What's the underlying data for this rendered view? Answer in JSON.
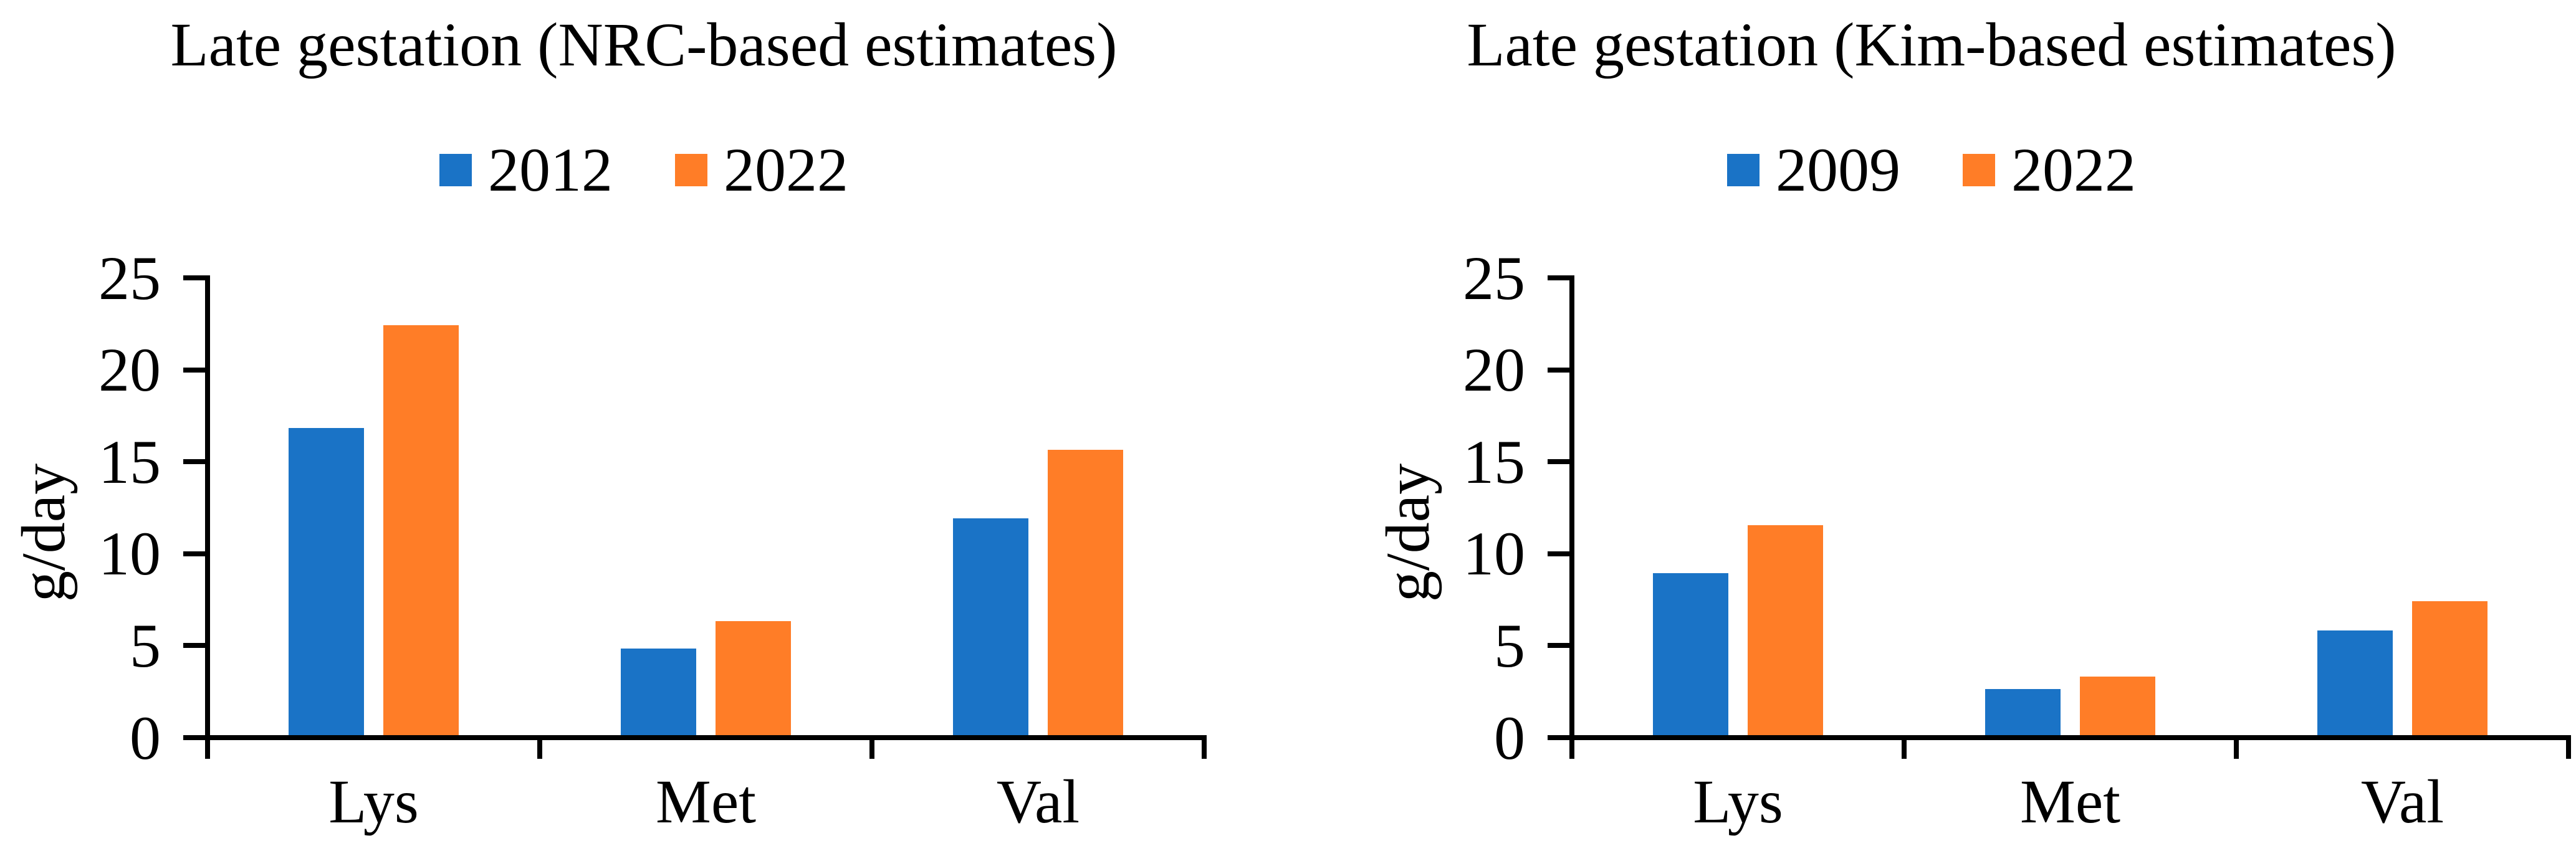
{
  "background": "#FFFFFF",
  "axis_color": "#000000",
  "text_color": "#000000",
  "chart_data": [
    {
      "type": "bar",
      "title": "Late gestation (NRC-based estimates)",
      "ylabel": "g/day",
      "xlabel": "",
      "categories": [
        "Lys",
        "Met",
        "Val"
      ],
      "series": [
        {
          "name": "2012",
          "color": "#1A73C6",
          "values": [
            16.7,
            4.7,
            11.8
          ]
        },
        {
          "name": "2022",
          "color": "#FF7D27",
          "values": [
            22.3,
            6.2,
            15.5
          ]
        }
      ],
      "ylim": [
        0,
        25
      ],
      "yticks": [
        0,
        5,
        10,
        15,
        20,
        25
      ],
      "legend_position": "top-center",
      "grid": false
    },
    {
      "type": "bar",
      "title": "Late gestation (Kim-based estimates)",
      "ylabel": "g/day",
      "xlabel": "",
      "categories": [
        "Lys",
        "Met",
        "Val"
      ],
      "series": [
        {
          "name": "2009",
          "color": "#1A73C6",
          "values": [
            8.8,
            2.5,
            5.7
          ]
        },
        {
          "name": "2022",
          "color": "#FF7D27",
          "values": [
            11.4,
            3.2,
            7.3
          ]
        }
      ],
      "ylim": [
        0,
        25
      ],
      "yticks": [
        0,
        5,
        10,
        15,
        20,
        25
      ],
      "legend_position": "top-center",
      "grid": false
    }
  ]
}
